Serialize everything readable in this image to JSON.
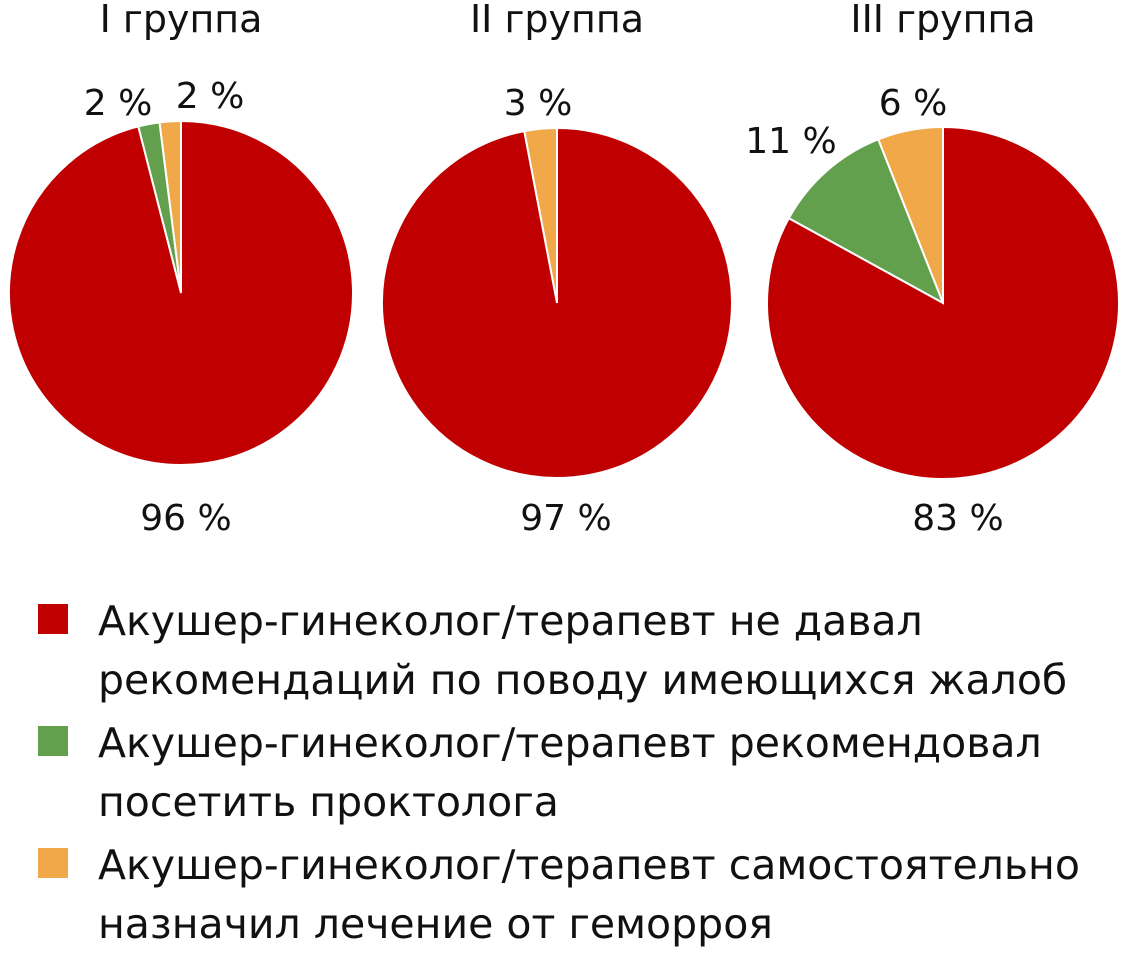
{
  "chart_data": [
    {
      "type": "pie",
      "title": "I группа",
      "categories": [
        "Акушер-гинеколог/терапевт не давал рекомендаций по поводу имеющихся жалоб",
        "Акушер-гинеколог/терапевт рекомендовал посетить проктолога",
        "Акушер-гинеколог/терапевт самостоятельно назначил лечение от геморроя"
      ],
      "values": [
        96,
        2,
        2
      ],
      "labels": [
        "96 %",
        "2 %",
        "2 %"
      ]
    },
    {
      "type": "pie",
      "title": "II группа",
      "categories": [
        "Акушер-гинеколог/терапевт не давал рекомендаций по поводу имеющихся жалоб",
        "Акушер-гинеколог/терапевт рекомендовал посетить проктолога",
        "Акушер-гинеколог/терапевт самостоятельно назначил лечение от геморроя"
      ],
      "values": [
        97,
        0,
        3
      ],
      "labels": [
        "97 %",
        "",
        "3 %"
      ]
    },
    {
      "type": "pie",
      "title": "III группа",
      "categories": [
        "Акушер-гинеколог/терапевт не давал рекомендаций по поводу имеющихся жалоб",
        "Акушер-гинеколог/терапевт рекомендовал посетить проктолога",
        "Акушер-гинеколог/терапевт самостоятельно назначил лечение от геморроя"
      ],
      "values": [
        83,
        11,
        6
      ],
      "labels": [
        "83 %",
        "11 %",
        "6 %"
      ]
    }
  ],
  "colors": [
    "#c00000",
    "#63a04d",
    "#f0a848"
  ],
  "legend": {
    "placement": "bottom",
    "items": [
      "Акушер-гинеколог/терапевт не давал\nрекомендаций по поводу имеющихся жалоб",
      "Акушер-гинеколог/терапевт рекомендовал\nпосетить проктолога",
      "Акушер-гинеколог/терапевт самостоятельно\nназначил лечение от геморроя"
    ]
  }
}
